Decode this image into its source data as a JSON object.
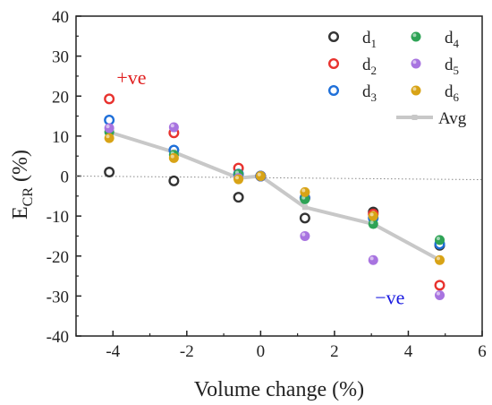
{
  "chart_data": {
    "type": "scatter",
    "xlabel": "Volume change (%)",
    "ylabel_main": "E",
    "ylabel_sub": "CR",
    "ylabel_unit": " (%)",
    "xlim": [
      -5,
      6
    ],
    "ylim": [
      -40,
      40
    ],
    "xticks": [
      -4,
      -2,
      0,
      2,
      4,
      6
    ],
    "yticks": [
      -40,
      -30,
      -20,
      -10,
      0,
      10,
      20,
      30,
      40
    ],
    "x": [
      -4.1,
      -2.35,
      -0.6,
      0,
      1.2,
      3.05,
      4.85
    ],
    "grid": false,
    "zero_line": {
      "style": "dotted",
      "color": "#888888"
    },
    "legend_position": "top-right",
    "series": [
      {
        "name": "d",
        "sub": "1",
        "color": "#333333",
        "filled": false,
        "values": [
          1,
          -1.2,
          -5.3,
          0,
          -10.5,
          -9,
          -17.3
        ]
      },
      {
        "name": "d",
        "sub": "2",
        "color": "#e8322e",
        "filled": false,
        "values": [
          19.3,
          10.8,
          2,
          0,
          -5.5,
          -9.5,
          -27.3
        ]
      },
      {
        "name": "d",
        "sub": "3",
        "color": "#1e6fd9",
        "filled": false,
        "values": [
          14,
          6.5,
          0.5,
          0,
          -5.5,
          -10.5,
          -17
        ]
      },
      {
        "name": "d",
        "sub": "4",
        "color": "#2ea356",
        "filled": true,
        "values": [
          11,
          5.3,
          0.5,
          0,
          -5.8,
          -12,
          -16
        ]
      },
      {
        "name": "d",
        "sub": "5",
        "color": "#a874e0",
        "filled": true,
        "values": [
          12,
          12.2,
          -0.5,
          0,
          -15,
          -21,
          -29.8
        ]
      },
      {
        "name": "d",
        "sub": "6",
        "color": "#d8a316",
        "filled": true,
        "values": [
          9.5,
          4.5,
          -0.8,
          0,
          -4,
          -10,
          -21
        ]
      }
    ],
    "avg": {
      "name": "Avg",
      "color": "#c8c8c8",
      "values": [
        11,
        6,
        -0.5,
        0,
        -7.8,
        -12,
        -21
      ]
    },
    "annotations": [
      {
        "text": "+ve",
        "color": "#e02020",
        "x": -3.5,
        "y": 23
      },
      {
        "text": "−ve",
        "color": "#1a1ae0",
        "x": 3.5,
        "y": -32
      }
    ]
  }
}
